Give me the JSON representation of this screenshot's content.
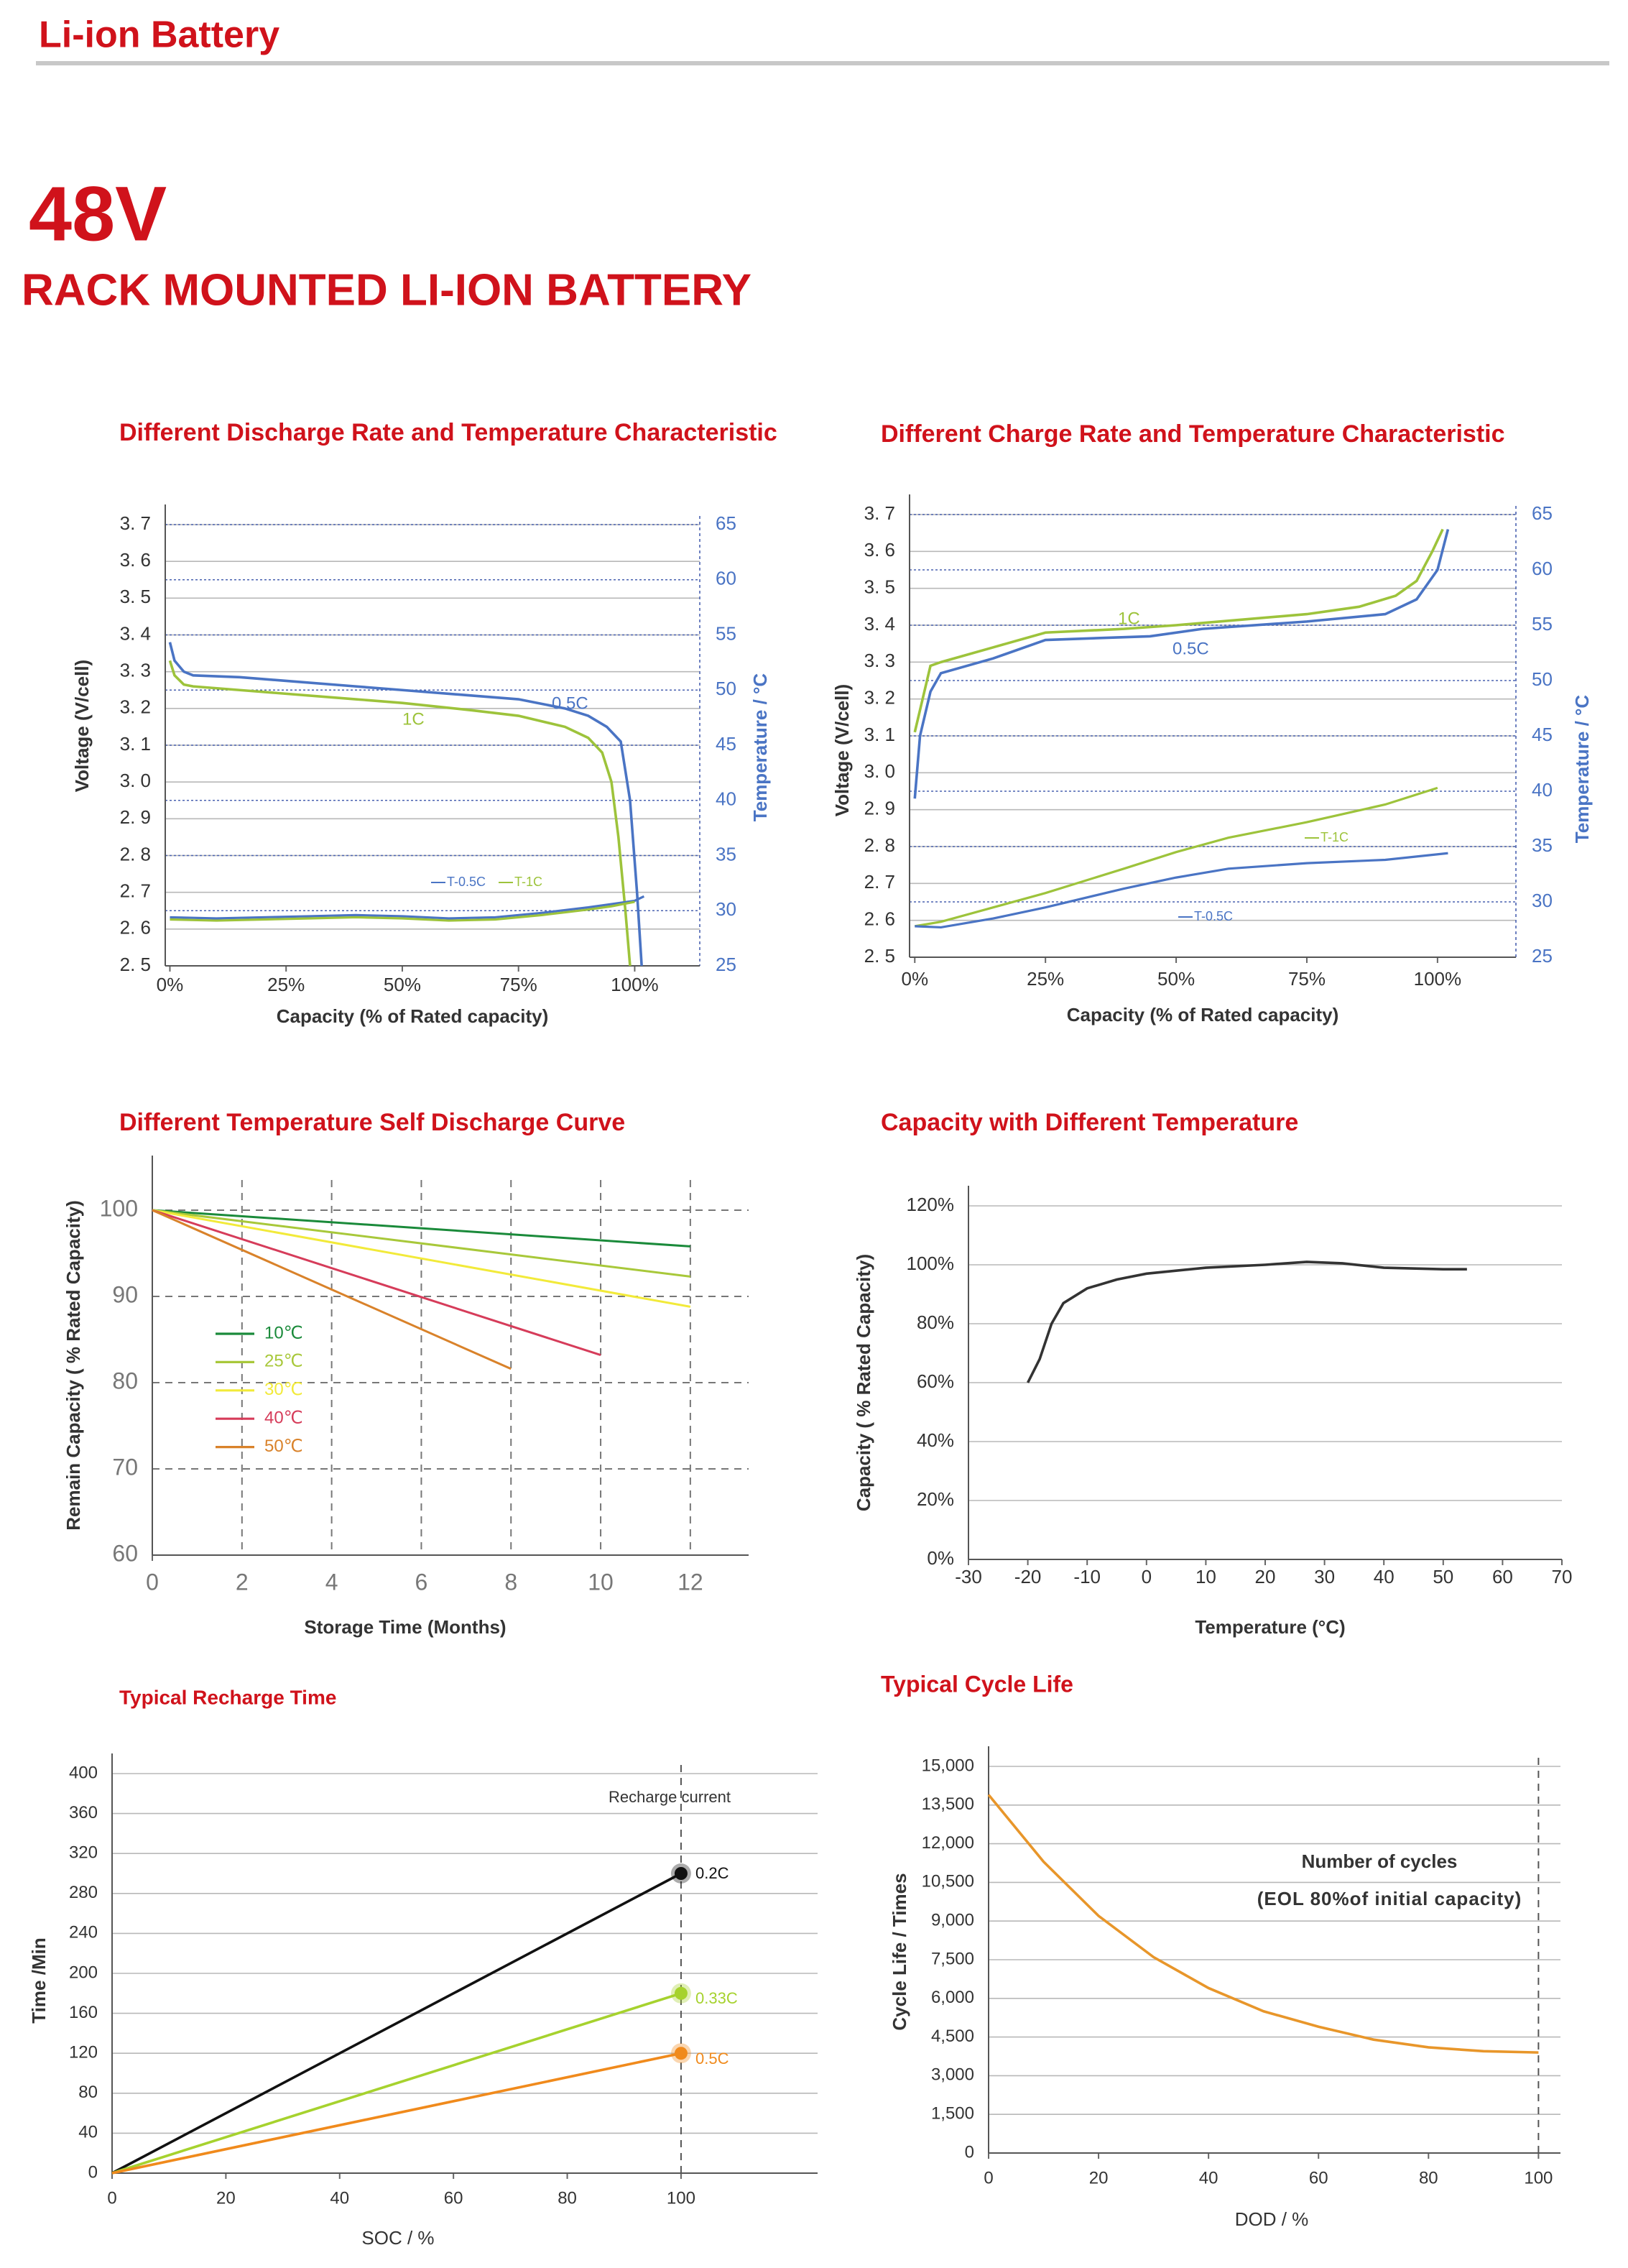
{
  "header": {
    "title": "Li-ion Battery",
    "voltage": "48V",
    "subtitle": "RACK MOUNTED LI-ION BATTERY"
  },
  "chart_data": [
    {
      "type": "line",
      "title": "Different Discharge Rate and Temperature Characteristic",
      "x_label": "Capacity  (% of Rated capacity)",
      "y_label": "Voltage  (V/cell)",
      "y2_label": "Temperature / °C",
      "xlim": [
        -1,
        114
      ],
      "xticks": [
        {
          "value": 0,
          "label": "0%"
        },
        {
          "value": 25,
          "label": "25%"
        },
        {
          "value": 50,
          "label": "50%"
        },
        {
          "value": 75,
          "label": "75%"
        },
        {
          "value": 100,
          "label": "100%"
        }
      ],
      "ylim": [
        2.5,
        3.7
      ],
      "yticks": [
        {
          "value": 2.5,
          "label": "2. 5"
        },
        {
          "value": 2.6,
          "label": "2. 6"
        },
        {
          "value": 2.7,
          "label": "2. 7"
        },
        {
          "value": 2.8,
          "label": "2. 8"
        },
        {
          "value": 2.9,
          "label": "2. 9"
        },
        {
          "value": 3.0,
          "label": "3. 0"
        },
        {
          "value": 3.1,
          "label": "3. 1"
        },
        {
          "value": 3.2,
          "label": "3. 2"
        },
        {
          "value": 3.3,
          "label": "3. 3"
        },
        {
          "value": 3.4,
          "label": "3. 4"
        },
        {
          "value": 3.5,
          "label": "3. 5"
        },
        {
          "value": 3.6,
          "label": "3. 6"
        },
        {
          "value": 3.7,
          "label": "3. 7"
        }
      ],
      "y2lim": [
        25,
        65
      ],
      "y2ticks": [
        25,
        30,
        35,
        40,
        45,
        50,
        55,
        60,
        65
      ],
      "grid": true,
      "grid_style": "solid",
      "series": [
        {
          "name": "0.5C",
          "color": "#4a74c4",
          "x": [
            0,
            1,
            3,
            5,
            15,
            25,
            40,
            50,
            65,
            75,
            85,
            90,
            94,
            97,
            99,
            100.5,
            101.5
          ],
          "values": [
            3.38,
            3.33,
            3.3,
            3.29,
            3.285,
            3.275,
            3.26,
            3.25,
            3.235,
            3.225,
            3.2,
            3.18,
            3.15,
            3.11,
            2.95,
            2.7,
            2.5
          ]
        },
        {
          "name": "1C",
          "color": "#9dc33b",
          "x": [
            0,
            1,
            3,
            5,
            15,
            25,
            40,
            50,
            65,
            75,
            85,
            90,
            93,
            95,
            96.5,
            98,
            99
          ],
          "values": [
            3.33,
            3.29,
            3.265,
            3.26,
            3.25,
            3.24,
            3.225,
            3.215,
            3.195,
            3.18,
            3.15,
            3.12,
            3.08,
            3.0,
            2.85,
            2.65,
            2.5
          ]
        },
        {
          "name": "T-0.5C",
          "color": "#4a74c4",
          "axis": "y2",
          "x": [
            0,
            10,
            20,
            30,
            40,
            50,
            60,
            70,
            80,
            90,
            95,
            100,
            102
          ],
          "values": [
            29.4,
            29.3,
            29.4,
            29.5,
            29.6,
            29.5,
            29.3,
            29.4,
            29.8,
            30.3,
            30.6,
            30.9,
            31.3
          ]
        },
        {
          "name": "T-1C",
          "color": "#9dc33b",
          "axis": "y2",
          "x": [
            0,
            10,
            20,
            30,
            40,
            50,
            60,
            70,
            80,
            90,
            95,
            100
          ],
          "values": [
            29.2,
            29.1,
            29.2,
            29.3,
            29.4,
            29.3,
            29.1,
            29.2,
            29.6,
            30.1,
            30.4,
            30.8
          ]
        }
      ]
    },
    {
      "type": "line",
      "title": "Different Charge Rate and Temperature Characteristic",
      "x_label": "Capacity  (% of Rated capacity)",
      "y_label": "Voltage  (V/cell)",
      "y2_label": "Temperature / °C",
      "xlim": [
        -1,
        115
      ],
      "xticks": [
        {
          "value": 0,
          "label": "0%"
        },
        {
          "value": 25,
          "label": "25%"
        },
        {
          "value": 50,
          "label": "50%"
        },
        {
          "value": 75,
          "label": "75%"
        },
        {
          "value": 100,
          "label": "100%"
        }
      ],
      "ylim": [
        2.5,
        3.7
      ],
      "yticks": [
        {
          "value": 2.5,
          "label": "2. 5"
        },
        {
          "value": 2.6,
          "label": "2. 6"
        },
        {
          "value": 2.7,
          "label": "2. 7"
        },
        {
          "value": 2.8,
          "label": "2. 8"
        },
        {
          "value": 2.9,
          "label": "2. 9"
        },
        {
          "value": 3.0,
          "label": "3. 0"
        },
        {
          "value": 3.1,
          "label": "3. 1"
        },
        {
          "value": 3.2,
          "label": "3. 2"
        },
        {
          "value": 3.3,
          "label": "3. 3"
        },
        {
          "value": 3.4,
          "label": "3. 4"
        },
        {
          "value": 3.5,
          "label": "3. 5"
        },
        {
          "value": 3.6,
          "label": "3. 6"
        },
        {
          "value": 3.7,
          "label": "3. 7"
        }
      ],
      "y2lim": [
        25,
        65
      ],
      "y2ticks": [
        25,
        30,
        35,
        40,
        45,
        50,
        55,
        60,
        65
      ],
      "grid": true,
      "grid_style": "solid",
      "series": [
        {
          "name": "1C",
          "color": "#9dc33b",
          "x": [
            0,
            3,
            5,
            15,
            25,
            40,
            50,
            75,
            85,
            92,
            96,
            99,
            101
          ],
          "values": [
            3.11,
            3.29,
            3.3,
            3.34,
            3.38,
            3.39,
            3.4,
            3.43,
            3.45,
            3.48,
            3.52,
            3.6,
            3.66
          ]
        },
        {
          "name": "0.5C",
          "color": "#4a74c4",
          "x": [
            0,
            1,
            3,
            5,
            15,
            25,
            45,
            55,
            75,
            90,
            96,
            100,
            102
          ],
          "values": [
            2.93,
            3.1,
            3.22,
            3.27,
            3.31,
            3.36,
            3.37,
            3.39,
            3.41,
            3.43,
            3.47,
            3.55,
            3.66
          ]
        },
        {
          "name": "T-1C",
          "color": "#9dc33b",
          "axis": "y2",
          "x": [
            0,
            5,
            15,
            25,
            40,
            50,
            60,
            75,
            90,
            100
          ],
          "values": [
            27.8,
            28.2,
            29.5,
            30.8,
            33,
            34.5,
            35.8,
            37.2,
            38.8,
            40.3
          ]
        },
        {
          "name": "T-0.5C",
          "color": "#4a74c4",
          "axis": "y2",
          "x": [
            0,
            5,
            15,
            25,
            40,
            50,
            60,
            75,
            90,
            102
          ],
          "values": [
            27.8,
            27.7,
            28.5,
            29.5,
            31.2,
            32.2,
            33,
            33.5,
            33.8,
            34.4
          ]
        }
      ]
    },
    {
      "type": "line",
      "title": "Different Temperature Self Discharge Curve",
      "x_label": "Storage Time (Months)",
      "y_label": "Remain Capacity ( % Rated Capacity)",
      "xlim": [
        0,
        13.3
      ],
      "xticks": [
        0,
        2,
        4,
        6,
        8,
        10,
        12
      ],
      "ylim": [
        60,
        104
      ],
      "yticks": [
        60,
        70,
        80,
        90,
        100
      ],
      "grid": true,
      "grid_style": "dashed",
      "xgrid": true,
      "legend": "left",
      "series": [
        {
          "name": "10℃",
          "color": "#1a8a3a",
          "x": [
            0,
            12
          ],
          "values": [
            100,
            95.8
          ]
        },
        {
          "name": "25℃",
          "color": "#a8c83a",
          "x": [
            0,
            12
          ],
          "values": [
            100,
            92.3
          ]
        },
        {
          "name": "30℃",
          "color": "#f2ea3a",
          "x": [
            0,
            12
          ],
          "values": [
            100,
            88.8
          ]
        },
        {
          "name": "40℃",
          "color": "#d63c5a",
          "x": [
            0,
            10
          ],
          "values": [
            100,
            83.2
          ]
        },
        {
          "name": "50℃",
          "color": "#d9822a",
          "x": [
            0,
            8
          ],
          "values": [
            100,
            81.6
          ]
        }
      ]
    },
    {
      "type": "line",
      "title": "Capacity with Different Temperature",
      "x_label": "Temperature (°C)",
      "y_label": "Capacity ( % Rated Capacity)",
      "xlim": [
        -30,
        70
      ],
      "xticks": [
        -30,
        -20,
        -10,
        0,
        10,
        20,
        30,
        40,
        50,
        60,
        70
      ],
      "ylim": [
        0,
        120
      ],
      "yticks": [
        {
          "value": 0,
          "label": "0%"
        },
        {
          "value": 20,
          "label": "20%"
        },
        {
          "value": 40,
          "label": "40%"
        },
        {
          "value": 60,
          "label": "60%"
        },
        {
          "value": 80,
          "label": "80%"
        },
        {
          "value": 100,
          "label": "100%"
        },
        {
          "value": 120,
          "label": "120%"
        }
      ],
      "grid": true,
      "grid_style": "solid",
      "series": [
        {
          "color": "#333333",
          "x": [
            -20,
            -18,
            -16,
            -14,
            -10,
            -5,
            0,
            10,
            20,
            27,
            33,
            40,
            50,
            54
          ],
          "values": [
            60,
            68,
            80,
            87,
            92,
            95,
            97,
            99,
            100,
            101,
            100.5,
            99,
            98.5,
            98.5
          ]
        }
      ]
    },
    {
      "type": "line",
      "title": "Typical Recharge Time",
      "x_label": "SOC / %",
      "y_label": "Time /Min",
      "annotations": [
        "Recharge current"
      ],
      "xlim": [
        0,
        124
      ],
      "xticks": [
        0,
        20,
        40,
        60,
        80,
        100
      ],
      "ylim": [
        0,
        400
      ],
      "yticks": [
        0,
        40,
        80,
        120,
        160,
        200,
        240,
        280,
        320,
        360,
        400
      ],
      "grid": true,
      "grid_style": "solid",
      "x_reference": 100,
      "markers": true,
      "series": [
        {
          "name": "0.2C",
          "color": "#111111",
          "x": [
            0,
            100
          ],
          "values": [
            0,
            300
          ]
        },
        {
          "name": "0.33C",
          "color": "#a6d22e",
          "x": [
            0,
            100
          ],
          "values": [
            0,
            180
          ]
        },
        {
          "name": "0.5C",
          "color": "#f08a1c",
          "x": [
            0,
            100
          ],
          "values": [
            0,
            120
          ]
        }
      ]
    },
    {
      "type": "line",
      "title": "Typical Cycle Life",
      "x_label": "DOD / %",
      "y_label": "Cycle Life / Times",
      "annotations": [
        "Number of cycles",
        "(EOL 80%of initial capacity)"
      ],
      "xlim": [
        0,
        104
      ],
      "xticks": [
        0,
        20,
        40,
        60,
        80,
        100
      ],
      "ylim": [
        0,
        15000
      ],
      "yticks": [
        0,
        {
          "value": 1500,
          "label": "1,500"
        },
        {
          "value": 3000,
          "label": "3,000"
        },
        {
          "value": 4500,
          "label": "4,500"
        },
        {
          "value": 6000,
          "label": "6,000"
        },
        {
          "value": 7500,
          "label": "7,500"
        },
        {
          "value": 9000,
          "label": "9,000"
        },
        {
          "value": 10500,
          "label": "10,500"
        },
        {
          "value": 12000,
          "label": "12,000"
        },
        {
          "value": 13500,
          "label": "13,500"
        },
        {
          "value": 15000,
          "label": "15,000"
        }
      ],
      "grid": true,
      "grid_style": "solid",
      "x_reference": 100,
      "series": [
        {
          "color": "#e8962a",
          "x": [
            0,
            10,
            20,
            30,
            40,
            50,
            60,
            70,
            80,
            90,
            100
          ],
          "values": [
            13900,
            11300,
            9200,
            7600,
            6400,
            5500,
            4900,
            4400,
            4100,
            3950,
            3900
          ]
        }
      ]
    }
  ]
}
